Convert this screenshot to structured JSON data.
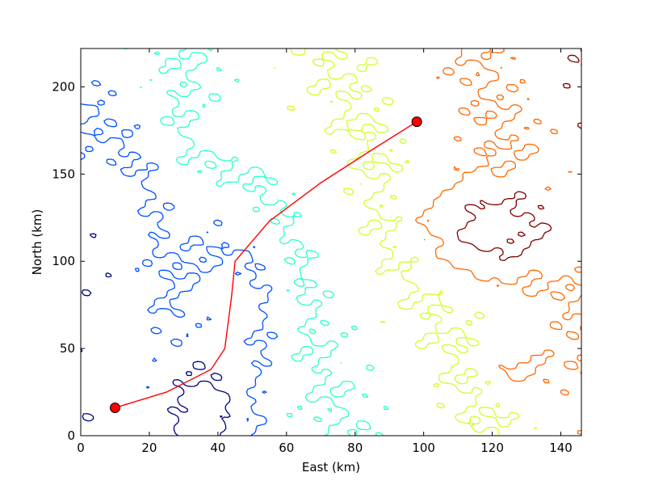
{
  "chart_data": {
    "type": "contour",
    "xlabel": "East (km)",
    "ylabel": "North (km)",
    "xlim": [
      0,
      146
    ],
    "ylim": [
      0,
      222
    ],
    "xticks": [
      0,
      20,
      40,
      60,
      80,
      100,
      120,
      140
    ],
    "yticks": [
      0,
      50,
      100,
      150,
      200
    ],
    "grid": false,
    "contour_colors": [
      "#00007f",
      "#0050ff",
      "#29ffce",
      "#ceff29",
      "#ff6800",
      "#7f0000"
    ],
    "route": {
      "color": "#ff0000",
      "points": [
        [
          10,
          16
        ],
        [
          25,
          25
        ],
        [
          38,
          38
        ],
        [
          42,
          50
        ],
        [
          44,
          80
        ],
        [
          45,
          100
        ],
        [
          55,
          123
        ],
        [
          70,
          145
        ],
        [
          85,
          164
        ],
        [
          98,
          180
        ]
      ],
      "start": [
        10,
        16
      ],
      "end": [
        98,
        180
      ]
    }
  }
}
